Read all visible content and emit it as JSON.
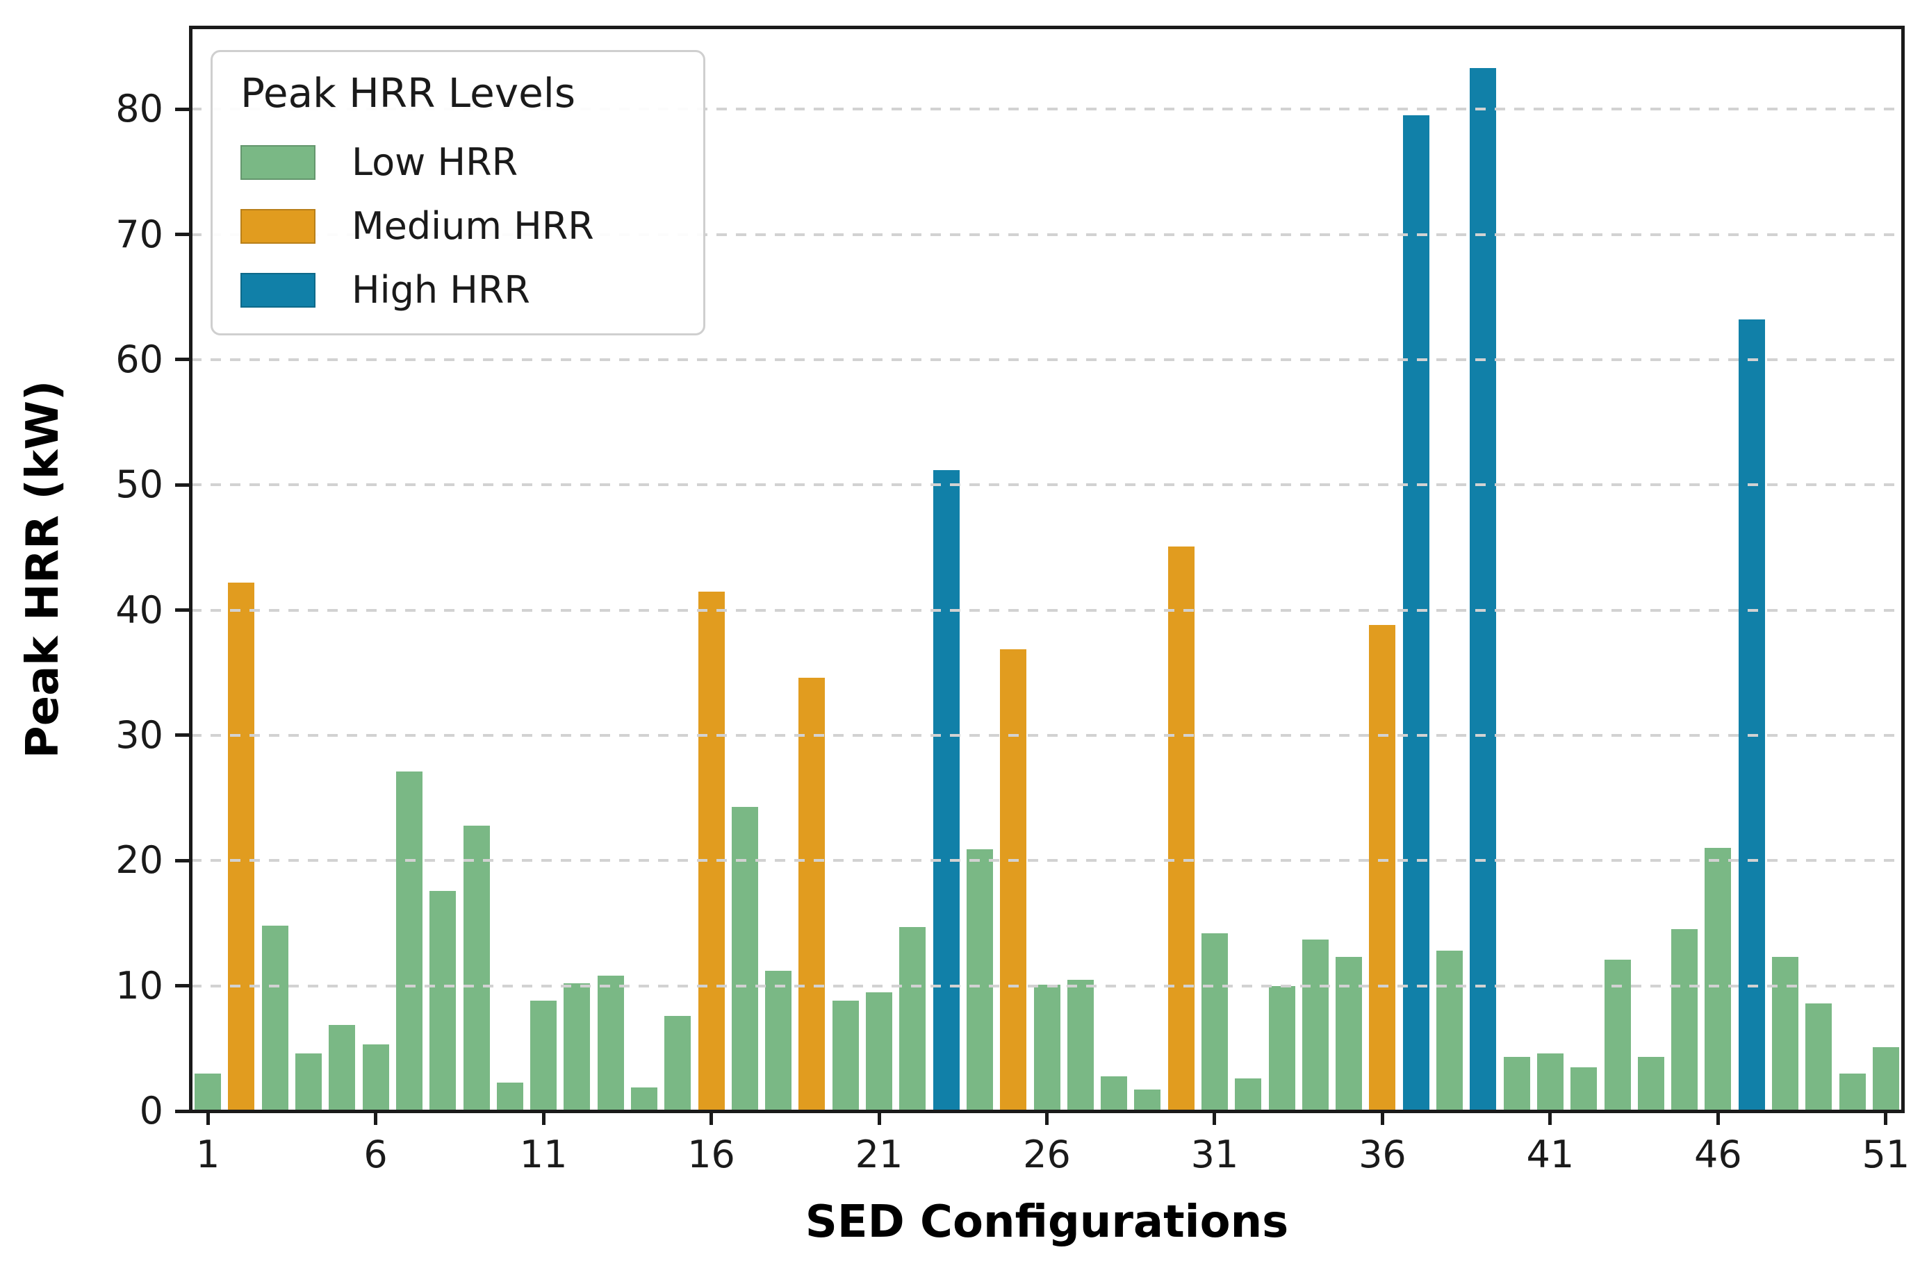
{
  "figure": {
    "xlabel": "SED Configurations",
    "ylabel": "Peak HRR (kW)"
  },
  "legend": {
    "title": "Peak HRR Levels",
    "entries": [
      {
        "label": "Low HRR",
        "level": "low"
      },
      {
        "label": "Medium HRR",
        "level": "medium"
      },
      {
        "label": "High HRR",
        "level": "high"
      }
    ]
  },
  "chart_data": {
    "type": "bar",
    "title": "",
    "xlabel": "SED Configurations",
    "ylabel": "Peak HRR (kW)",
    "categories": [
      1,
      2,
      3,
      4,
      5,
      6,
      7,
      8,
      9,
      10,
      11,
      12,
      13,
      14,
      15,
      16,
      17,
      18,
      19,
      20,
      21,
      22,
      23,
      24,
      25,
      26,
      27,
      28,
      29,
      30,
      31,
      32,
      33,
      34,
      35,
      36,
      37,
      38,
      39,
      40,
      41,
      42,
      43,
      44,
      45,
      46,
      47,
      48,
      49,
      50,
      51
    ],
    "values": [
      3.0,
      42.2,
      14.8,
      4.6,
      6.9,
      5.3,
      27.1,
      17.6,
      22.8,
      2.3,
      8.8,
      10.2,
      10.8,
      1.9,
      7.6,
      41.5,
      24.3,
      11.2,
      34.6,
      8.8,
      9.5,
      14.7,
      51.2,
      20.9,
      36.9,
      10.1,
      10.5,
      2.8,
      1.7,
      45.1,
      14.2,
      2.6,
      10.0,
      13.7,
      12.3,
      38.8,
      79.5,
      12.8,
      83.3,
      4.3,
      4.6,
      3.5,
      12.1,
      4.3,
      14.5,
      21.0,
      63.2,
      12.3,
      8.6,
      3.0,
      5.1
    ],
    "levels": [
      "low",
      "medium",
      "low",
      "low",
      "low",
      "low",
      "low",
      "low",
      "low",
      "low",
      "low",
      "low",
      "low",
      "low",
      "low",
      "medium",
      "low",
      "low",
      "medium",
      "low",
      "low",
      "low",
      "high",
      "low",
      "medium",
      "low",
      "low",
      "low",
      "low",
      "medium",
      "low",
      "low",
      "low",
      "low",
      "low",
      "medium",
      "high",
      "low",
      "high",
      "low",
      "low",
      "low",
      "low",
      "low",
      "low",
      "low",
      "high",
      "low",
      "low",
      "low",
      "low"
    ],
    "colors": {
      "low": "#7ab885",
      "medium": "#e19c1f",
      "high": "#1180a8"
    },
    "ylim": [
      0,
      86.5
    ],
    "yticks": [
      0,
      10,
      20,
      30,
      40,
      50,
      60,
      70,
      80
    ],
    "xticks": [
      1,
      6,
      11,
      16,
      21,
      26,
      31,
      36,
      41,
      46,
      51
    ],
    "grid": "horizontal-dashed",
    "legend_position": "upper-left"
  }
}
